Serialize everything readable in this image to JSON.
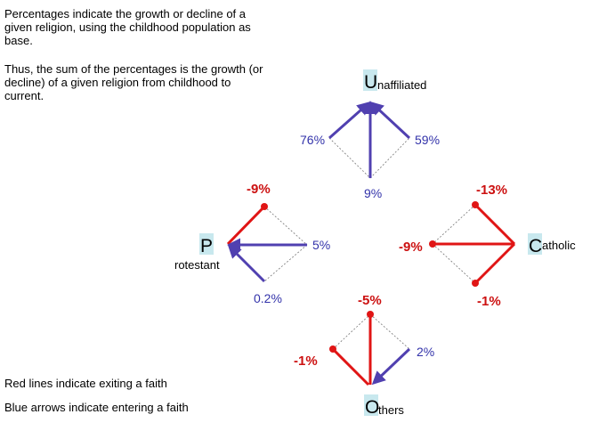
{
  "notes": {
    "growth_explanation": "Percentages indicate the growth or decline of a given religion, using the childhood population as base.",
    "sum_explanation": "Thus, the sum of the percentages is the growth (or decline) of a given religion from childhood to current.",
    "legend_red": "Red lines indicate exiting a faith",
    "legend_blue": "Blue arrows indicate entering a faith"
  },
  "colors": {
    "exit": "#e01515",
    "enter": "#5040b0",
    "exit_text": "#cc1111",
    "enter_text": "#3333aa",
    "highlight": "#c8e8ee"
  },
  "nodes": {
    "unaffiliated": {
      "initial": "U",
      "rest": "naffiliated"
    },
    "protestant": {
      "initial": "P",
      "rest": "rotestant"
    },
    "catholic": {
      "initial": "C",
      "rest": "atholic"
    },
    "others": {
      "initial": "O",
      "rest": "thers"
    }
  },
  "flows": {
    "unaffiliated_left": "76%",
    "unaffiliated_right": "59%",
    "unaffiliated_bottom": "9%",
    "protestant_top": "-9%",
    "protestant_right": "5%",
    "protestant_bottom": "0.2%",
    "catholic_top": "-13%",
    "catholic_left": "-9%",
    "catholic_bottom": "-1%",
    "others_top": "-5%",
    "others_left": "-1%",
    "others_right": "2%"
  }
}
